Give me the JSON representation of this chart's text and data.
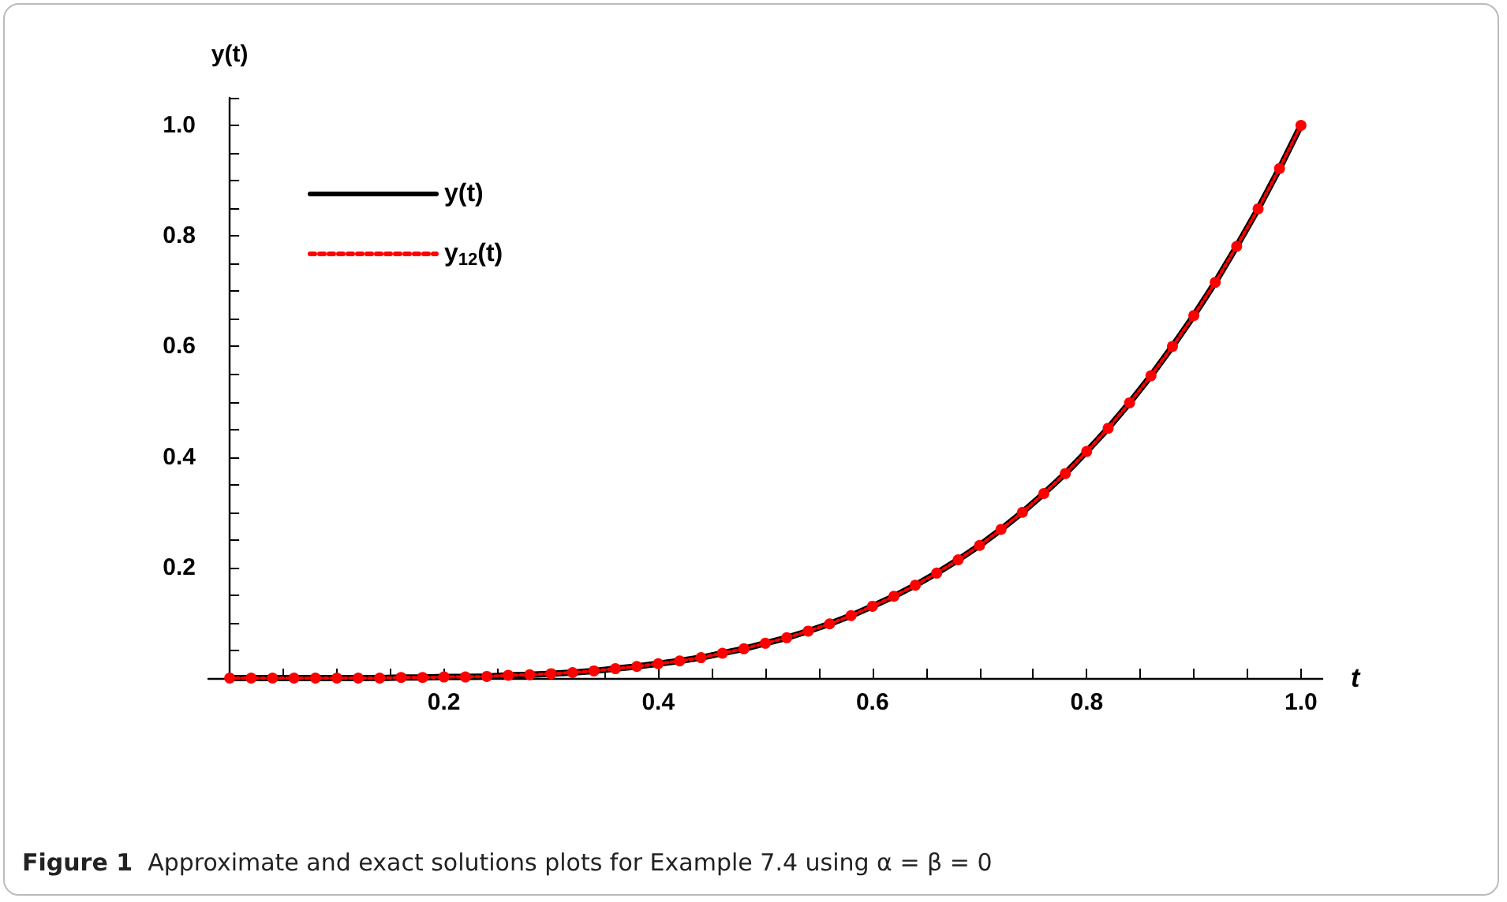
{
  "chart_data": {
    "type": "line",
    "xlabel": "t",
    "ylabel": "y(t)",
    "annotations": [
      "Figure 1  Approximate and exact solutions plots for Example 7.4 using α = β = 0"
    ],
    "x": [
      0,
      0.02,
      0.04,
      0.06,
      0.08,
      0.1,
      0.12,
      0.14,
      0.16,
      0.18,
      0.2,
      0.22,
      0.24,
      0.26,
      0.28,
      0.3,
      0.32,
      0.34,
      0.36,
      0.38,
      0.4,
      0.42,
      0.44,
      0.46,
      0.48,
      0.5,
      0.52,
      0.54,
      0.56,
      0.58,
      0.6,
      0.62,
      0.64,
      0.66,
      0.68,
      0.7,
      0.72,
      0.74,
      0.76,
      0.78,
      0.8,
      0.82,
      0.84,
      0.86,
      0.88,
      0.9,
      0.92,
      0.94,
      0.96,
      0.98,
      1.0
    ],
    "series": [
      {
        "name": "y(t)",
        "color": "#000000",
        "marker": "none",
        "line_style": "solid",
        "values": [
          0,
          0,
          0,
          0,
          0,
          0,
          0,
          0,
          0.001,
          0.001,
          0.002,
          0.002,
          0.003,
          0.005,
          0.006,
          0.008,
          0.01,
          0.013,
          0.017,
          0.021,
          0.026,
          0.031,
          0.037,
          0.045,
          0.053,
          0.063,
          0.073,
          0.085,
          0.098,
          0.113,
          0.13,
          0.148,
          0.168,
          0.19,
          0.214,
          0.24,
          0.269,
          0.3,
          0.334,
          0.37,
          0.41,
          0.452,
          0.498,
          0.547,
          0.6,
          0.656,
          0.716,
          0.781,
          0.849,
          0.922,
          1.0
        ]
      },
      {
        "name": "y$_{12}$(t)",
        "color": "#ff0000",
        "marker": "circle",
        "line_style": "dotted",
        "values": [
          0,
          0,
          0,
          0,
          0,
          0,
          0,
          0,
          0.001,
          0.001,
          0.002,
          0.002,
          0.003,
          0.005,
          0.006,
          0.008,
          0.01,
          0.013,
          0.017,
          0.021,
          0.026,
          0.031,
          0.037,
          0.045,
          0.053,
          0.063,
          0.073,
          0.085,
          0.098,
          0.113,
          0.13,
          0.148,
          0.168,
          0.19,
          0.214,
          0.24,
          0.269,
          0.3,
          0.334,
          0.37,
          0.41,
          0.452,
          0.498,
          0.547,
          0.6,
          0.656,
          0.716,
          0.781,
          0.849,
          0.922,
          1.0
        ]
      }
    ],
    "xlim": [
      -0.02,
      1.02
    ],
    "ylim": [
      0,
      1.05
    ],
    "xticks": [
      {
        "value": 0.05,
        "label": null
      },
      {
        "value": 0.1,
        "label": null
      },
      {
        "value": 0.15,
        "label": null
      },
      0.2,
      {
        "value": 0.25,
        "label": null
      },
      {
        "value": 0.3,
        "label": null
      },
      {
        "value": 0.35,
        "label": null
      },
      0.4,
      {
        "value": 0.45,
        "label": null
      },
      {
        "value": 0.5,
        "label": null
      },
      {
        "value": 0.55,
        "label": null
      },
      0.6,
      {
        "value": 0.65,
        "label": null
      },
      {
        "value": 0.7,
        "label": null
      },
      {
        "value": 0.75,
        "label": null
      },
      0.8,
      {
        "value": 0.85,
        "label": null
      },
      {
        "value": 0.9,
        "label": null
      },
      {
        "value": 0.95,
        "label": null
      },
      {
        "value": 1.0,
        "label": "1.0"
      }
    ],
    "yticks": [
      {
        "value": 0.05,
        "label": null
      },
      {
        "value": 0.1,
        "label": null
      },
      {
        "value": 0.15,
        "label": null
      },
      0.2,
      {
        "value": 0.25,
        "label": null
      },
      {
        "value": 0.3,
        "label": null
      },
      {
        "value": 0.35,
        "label": null
      },
      0.4,
      {
        "value": 0.45,
        "label": null
      },
      {
        "value": 0.5,
        "label": null
      },
      {
        "value": 0.55,
        "label": null
      },
      0.6,
      {
        "value": 0.65,
        "label": null
      },
      {
        "value": 0.7,
        "label": null
      },
      {
        "value": 0.75,
        "label": null
      },
      0.8,
      {
        "value": 0.85,
        "label": null
      },
      {
        "value": 0.9,
        "label": null
      },
      {
        "value": 0.95,
        "label": null
      },
      {
        "value": 1.0,
        "label": "1.0"
      },
      {
        "value": 1.05,
        "label": null
      }
    ],
    "grid": false,
    "legend": "top left"
  }
}
